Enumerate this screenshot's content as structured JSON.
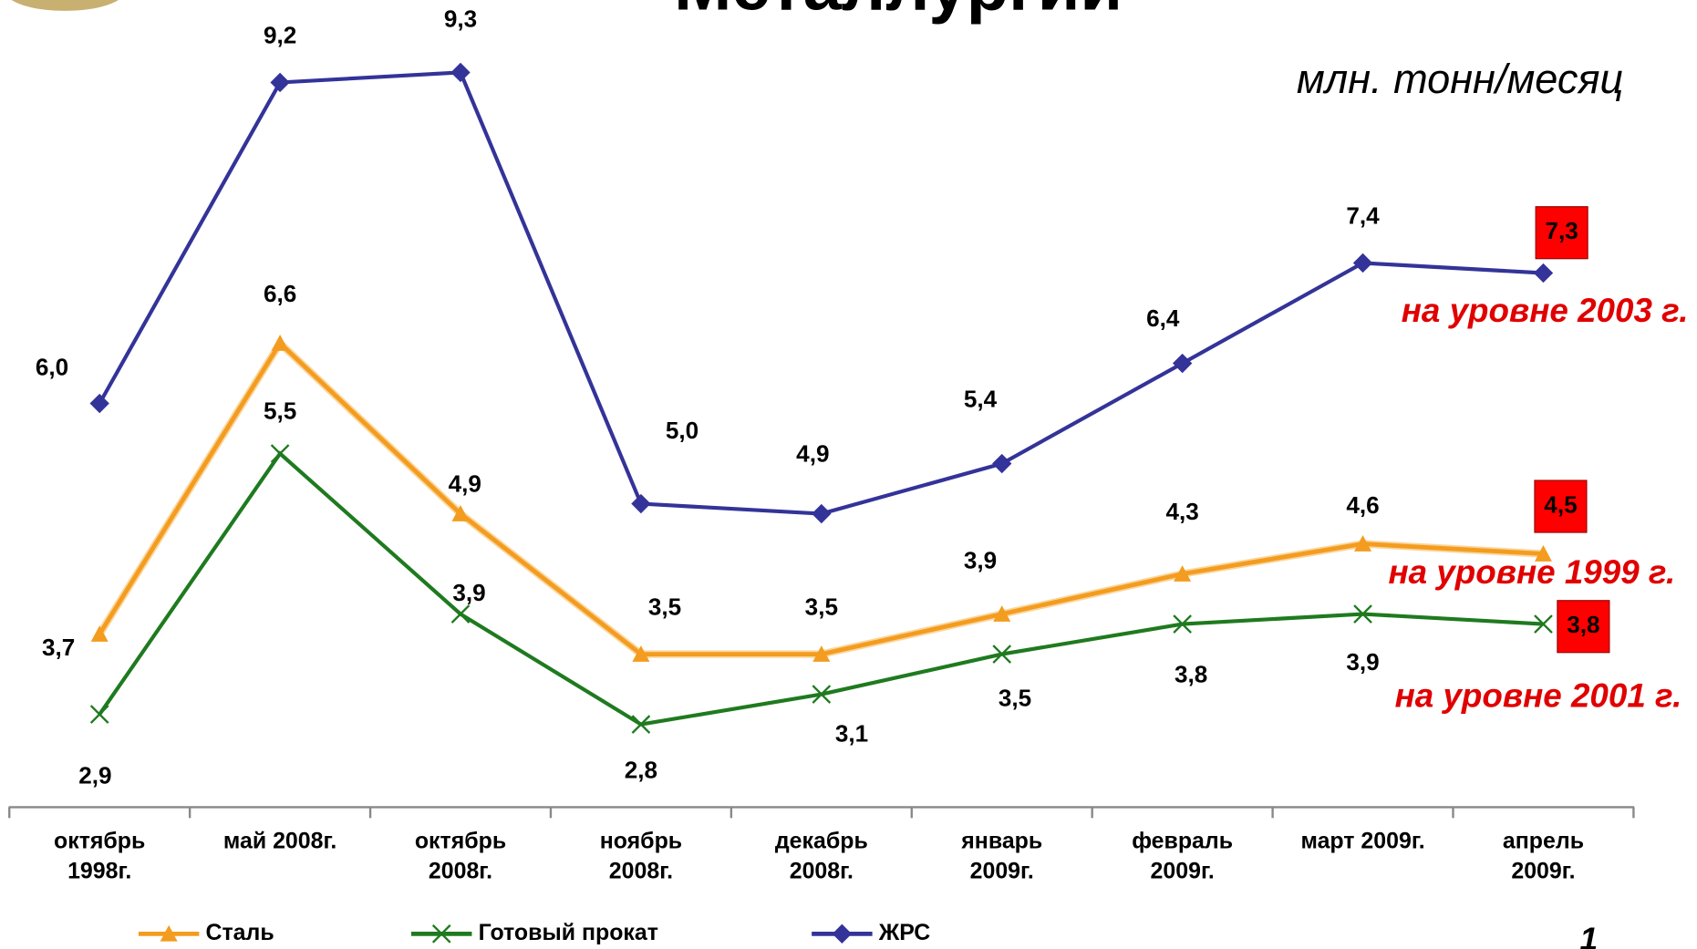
{
  "chart_data": {
    "type": "line",
    "title": "Металлургии",
    "unit": "млн. тонн/месяц",
    "categories": [
      [
        "октябрь",
        "1998г."
      ],
      [
        "май 2008г."
      ],
      [
        "октябрь",
        "2008г."
      ],
      [
        "ноябрь",
        "2008г."
      ],
      [
        "декабрь",
        "2008г."
      ],
      [
        "январь",
        "2009г."
      ],
      [
        "февраль",
        "2009г."
      ],
      [
        "март 2009г."
      ],
      [
        "апрель",
        "2009г."
      ]
    ],
    "series": [
      {
        "name": "Сталь",
        "color": "#f39c1f",
        "marker": "triangle",
        "values": [
          3.7,
          6.6,
          4.9,
          3.5,
          3.5,
          3.9,
          4.3,
          4.6,
          4.5
        ],
        "value_labels": [
          "3,7",
          "6,6",
          "4,9",
          "3,5",
          "3,5",
          "3,9",
          "4,3",
          "4,6",
          "4,5"
        ]
      },
      {
        "name": "Готовый прокат",
        "color": "#1f7a1f",
        "marker": "x",
        "values": [
          2.9,
          5.5,
          3.9,
          2.8,
          3.1,
          3.5,
          3.8,
          3.9,
          3.8
        ],
        "value_labels": [
          "2,9",
          "5,5",
          "3,9",
          "2,8",
          "3,1",
          "3,5",
          "3,8",
          "3,9",
          "3,8"
        ]
      },
      {
        "name": "ЖРС",
        "color": "#333399",
        "marker": "diamond",
        "values": [
          6.0,
          9.2,
          9.3,
          5.0,
          4.9,
          5.4,
          6.4,
          7.4,
          7.3
        ],
        "value_labels": [
          "6,0",
          "9,2",
          "9,3",
          "5,0",
          "4,9",
          "5,4",
          "6,4",
          "7,4",
          "7,3"
        ]
      }
    ],
    "annotations": [
      "на уровне 2003 г.",
      "на уровне 1999 г.",
      "на уровне 2001 г."
    ],
    "page_number": "1"
  }
}
